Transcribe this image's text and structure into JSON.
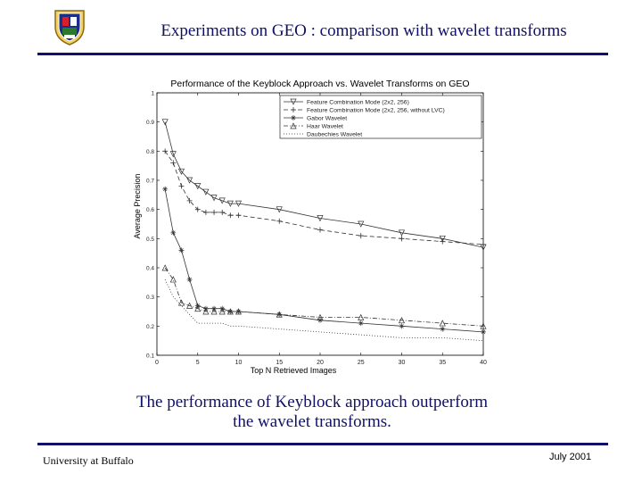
{
  "header": {
    "title": "Experiments on GEO : comparison with wavelet transforms"
  },
  "caption": {
    "line1": "The performance of Keyblock approach outperform",
    "line2": "the wavelet transforms."
  },
  "footer": {
    "left": "University at Buffalo",
    "right": "July 2001"
  },
  "chart_data": {
    "type": "line",
    "title": "Performance of the Keyblock Approach vs. Wavelet Transforms on GEO",
    "xlabel": "Top N Retrieved Images",
    "ylabel": "Average Precision",
    "xlim": [
      0,
      40
    ],
    "ylim": [
      0.1,
      1
    ],
    "xticks": [
      0,
      5,
      10,
      15,
      20,
      25,
      30,
      35,
      40
    ],
    "yticks": [
      0.1,
      0.2,
      0.3,
      0.4,
      0.5,
      0.6,
      0.7,
      0.8,
      0.9,
      1
    ],
    "ytick_labels": [
      "0.1",
      "0.2",
      "0.3",
      "0.4",
      "0.5",
      "0.6",
      "0.7",
      "0.8",
      "0.9",
      "1"
    ],
    "legend_position": "top-right",
    "grid": false,
    "x": [
      1,
      2,
      3,
      4,
      5,
      6,
      7,
      8,
      9,
      10,
      15,
      20,
      25,
      30,
      35,
      40
    ],
    "series": [
      {
        "name": "Feature Combination Mode (2x2, 256)",
        "marker": "triangle-down",
        "dash": "solid",
        "values": [
          0.9,
          0.79,
          0.73,
          0.7,
          0.68,
          0.66,
          0.64,
          0.63,
          0.62,
          0.62,
          0.6,
          0.57,
          0.55,
          0.52,
          0.5,
          0.47
        ]
      },
      {
        "name": "Feature Combination Mode (2x2, 256, without LVC)",
        "marker": "plus",
        "dash": "dash",
        "values": [
          0.8,
          0.76,
          0.68,
          0.63,
          0.6,
          0.59,
          0.59,
          0.59,
          0.58,
          0.58,
          0.56,
          0.53,
          0.51,
          0.5,
          0.49,
          0.48
        ]
      },
      {
        "name": "Gabor Wavelet",
        "marker": "star",
        "dash": "solid",
        "values": [
          0.67,
          0.52,
          0.46,
          0.36,
          0.27,
          0.26,
          0.26,
          0.26,
          0.25,
          0.25,
          0.24,
          0.22,
          0.21,
          0.2,
          0.19,
          0.18
        ]
      },
      {
        "name": "Haar Wavelet",
        "marker": "triangle-up",
        "dash": "dashdot",
        "values": [
          0.4,
          0.36,
          0.28,
          0.27,
          0.26,
          0.25,
          0.25,
          0.25,
          0.25,
          0.25,
          0.24,
          0.23,
          0.23,
          0.22,
          0.21,
          0.2
        ]
      },
      {
        "name": "Daubechies Wavelet",
        "marker": "none",
        "dash": "dot",
        "values": [
          0.36,
          0.3,
          0.27,
          0.24,
          0.21,
          0.21,
          0.21,
          0.21,
          0.2,
          0.2,
          0.19,
          0.18,
          0.17,
          0.16,
          0.16,
          0.15
        ]
      }
    ]
  }
}
